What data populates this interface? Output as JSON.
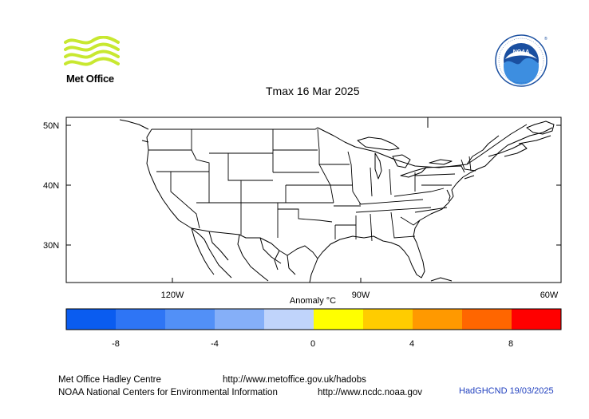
{
  "logos": {
    "met_office": {
      "text": "Met Office",
      "icon": "met-office-wave-logo",
      "color": "#c8e830"
    },
    "noaa": {
      "text": "NOAA",
      "icon": "noaa-seal-logo",
      "color": "#1a4fa0"
    }
  },
  "title": "Tmax 16 Mar 2025",
  "map": {
    "lat_labels": [
      "50N",
      "40N",
      "30N"
    ],
    "lon_labels": [
      "120W",
      "90W",
      "60W"
    ]
  },
  "colorbar": {
    "label": "Anomaly °C",
    "ticks": [
      "-8",
      "-4",
      "0",
      "4",
      "8"
    ],
    "colors": [
      "#0a5cf0",
      "#2e75f5",
      "#5290f7",
      "#85aff8",
      "#c0d4fb",
      "#ffff00",
      "#ffcc00",
      "#ff9900",
      "#ff6600",
      "#ff0000"
    ]
  },
  "footer": {
    "line1_left": "Met Office Hadley Centre",
    "line1_right": "http://www.metoffice.gov.uk/hadobs",
    "line2_left": "NOAA National Centers for Environmental Information",
    "line2_right": "http://www.ncdc.noaa.gov",
    "stamp": "HadGHCND 19/03/2025"
  }
}
